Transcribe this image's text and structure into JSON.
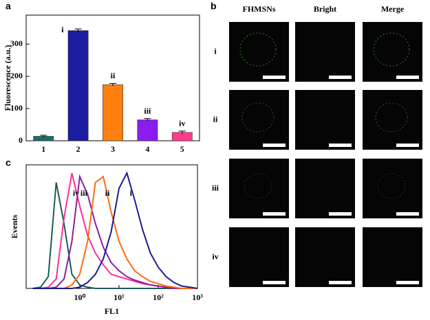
{
  "chart_data": [
    {
      "type": "bar",
      "panel": "a",
      "ylabel": "Fluorescence (a.u.)",
      "categories": [
        "1",
        "2",
        "3",
        "4",
        "5"
      ],
      "values": [
        14,
        342,
        174,
        65,
        26
      ],
      "errors": [
        3,
        5,
        4,
        4,
        4
      ],
      "colors": [
        "#1b6e6a",
        "#1c1ca0",
        "#ff8010",
        "#8a1cf0",
        "#ff3a8c"
      ],
      "bar_labels": [
        null,
        "i",
        "ii",
        "iii",
        "iv"
      ],
      "ylim": [
        0,
        390
      ],
      "yticks": [
        0,
        100,
        200,
        300
      ]
    },
    {
      "type": "line",
      "panel": "c",
      "xlabel": "FL1",
      "ylabel": "Events",
      "xscale": "log",
      "x": [
        0.063,
        0.1,
        0.158,
        0.251,
        0.398,
        0.631,
        1,
        1.585,
        2.512,
        3.981,
        6.31,
        10,
        15.85,
        25.12,
        39.81,
        63.1,
        100,
        158.5,
        251.2,
        398.1,
        631,
        1000
      ],
      "series": [
        {
          "color": "#1b5a55",
          "values": [
            0,
            1,
            10,
            90,
            55,
            12,
            3,
            1,
            0,
            0,
            0,
            0,
            0,
            0,
            0,
            0,
            0,
            0,
            0,
            0,
            0,
            0
          ]
        },
        {
          "name": "iv",
          "color": "#ff2d9a",
          "values": [
            0,
            0,
            1,
            8,
            60,
            98,
            70,
            45,
            30,
            20,
            12,
            10,
            8,
            6,
            4,
            3,
            2,
            1,
            0,
            0,
            0,
            0
          ]
        },
        {
          "name": "iii",
          "color": "#8e1c9c",
          "values": [
            0,
            0,
            0,
            1,
            8,
            40,
            95,
            80,
            55,
            35,
            22,
            15,
            10,
            7,
            5,
            3,
            2,
            1,
            0,
            0,
            0,
            0
          ]
        },
        {
          "name": "ii",
          "color": "#ff6a10",
          "values": [
            0,
            0,
            0,
            0,
            0,
            3,
            12,
            40,
            90,
            95,
            65,
            40,
            25,
            15,
            10,
            6,
            4,
            2,
            1,
            0,
            0,
            0
          ]
        },
        {
          "name": "i",
          "color": "#1a1a90",
          "values": [
            0,
            0,
            0,
            0,
            0,
            0,
            1,
            5,
            12,
            25,
            48,
            85,
            98,
            75,
            50,
            30,
            18,
            10,
            5,
            2,
            1,
            0
          ]
        }
      ],
      "xlim": [
        0.043,
        1000
      ],
      "ylim": [
        0,
        105
      ],
      "xticks": [
        {
          "value": 1,
          "label": "10⁰"
        },
        {
          "value": 10,
          "label": "10¹"
        },
        {
          "value": 100,
          "label": "10²"
        },
        {
          "value": 1000,
          "label": "10³"
        }
      ]
    }
  ],
  "panel_b": {
    "label": "b",
    "columns": [
      "FHMSNs",
      "Bright",
      "Merge"
    ],
    "rows": [
      "i",
      "ii",
      "iii",
      "iv"
    ]
  }
}
